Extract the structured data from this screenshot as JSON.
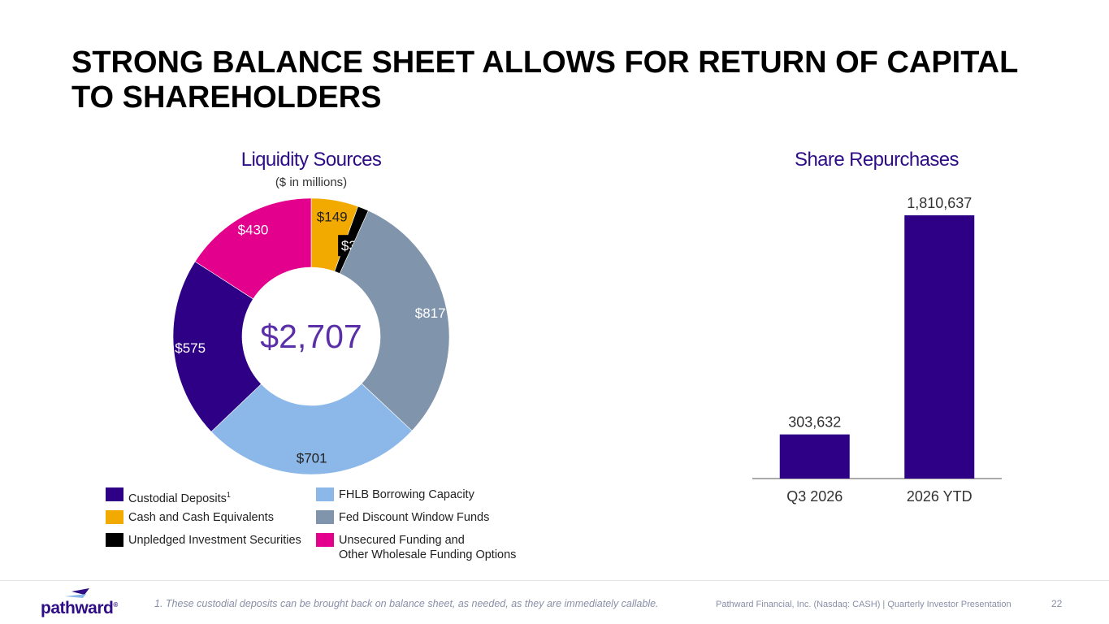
{
  "page": {
    "title_line1": "STRONG BALANCE SHEET ALLOWS FOR RETURN OF CAPITAL",
    "title_line2": "TO SHAREHOLDERS"
  },
  "liquidity": {
    "heading": "Liquidity Sources",
    "subheading": "($ in millions)"
  },
  "repurchases": {
    "heading": "Share Repurchases"
  },
  "chart_data": [
    {
      "type": "pie",
      "variant": "donut",
      "title": "Liquidity Sources",
      "subtitle": "($ in millions)",
      "center_label": "$2,707",
      "total": 2707,
      "legend_placement": "bottom",
      "slices": [
        {
          "name": "Cash and Cash Equivalents",
          "value": 149,
          "label": "$149",
          "color": "#f2a900",
          "label_color": "#222222"
        },
        {
          "name": "Unpledged Investment Securities",
          "value": 35,
          "label": "$35",
          "color": "#000000",
          "label_color": "#ffffff"
        },
        {
          "name": "Fed Discount Window Funds",
          "value": 817,
          "label": "$817",
          "color": "#8094ac",
          "label_color": "#ffffff"
        },
        {
          "name": "FHLB Borrowing Capacity",
          "value": 701,
          "label": "$701",
          "color": "#8bb8e8",
          "label_color": "#222222"
        },
        {
          "name": "Custodial Deposits",
          "value": 575,
          "label": "$575",
          "color": "#2e0086",
          "label_color": "#ffffff"
        },
        {
          "name": "Unsecured Funding and Other Wholesale Funding Options",
          "value": 430,
          "label": "$430",
          "color": "#e3008c",
          "label_color": "#ffffff"
        }
      ],
      "legend": [
        {
          "text": "Custodial Deposits",
          "sup": "1",
          "color": "#2e0086"
        },
        {
          "text": "Cash and Cash Equivalents",
          "sup": "",
          "color": "#f2a900"
        },
        {
          "text": "Unpledged Investment Securities",
          "sup": "",
          "color": "#000000"
        },
        {
          "text": "FHLB Borrowing Capacity",
          "sup": "",
          "color": "#8bb8e8"
        },
        {
          "text": "Fed Discount Window Funds",
          "sup": "",
          "color": "#8094ac"
        },
        {
          "text": "Unsecured Funding and\nOther Wholesale Funding Options",
          "sup": "",
          "color": "#e3008c"
        }
      ]
    },
    {
      "type": "bar",
      "title": "Share Repurchases",
      "categories": [
        "Q3 2026",
        "2026 YTD"
      ],
      "values": [
        303632,
        1810637
      ],
      "value_labels": [
        "303,632",
        "1,810,637"
      ],
      "color": "#2e0086",
      "ylim": [
        0,
        1900000
      ],
      "grid": false
    }
  ],
  "footer": {
    "logo_text": "pathward",
    "logo_mark": "®",
    "footnote": "1. These custodial deposits can be brought back on balance sheet, as needed, as they are immediately callable.",
    "info": "Pathward Financial, Inc. (Nasdaq: CASH) | Quarterly Investor Presentation",
    "page_number": "22"
  }
}
